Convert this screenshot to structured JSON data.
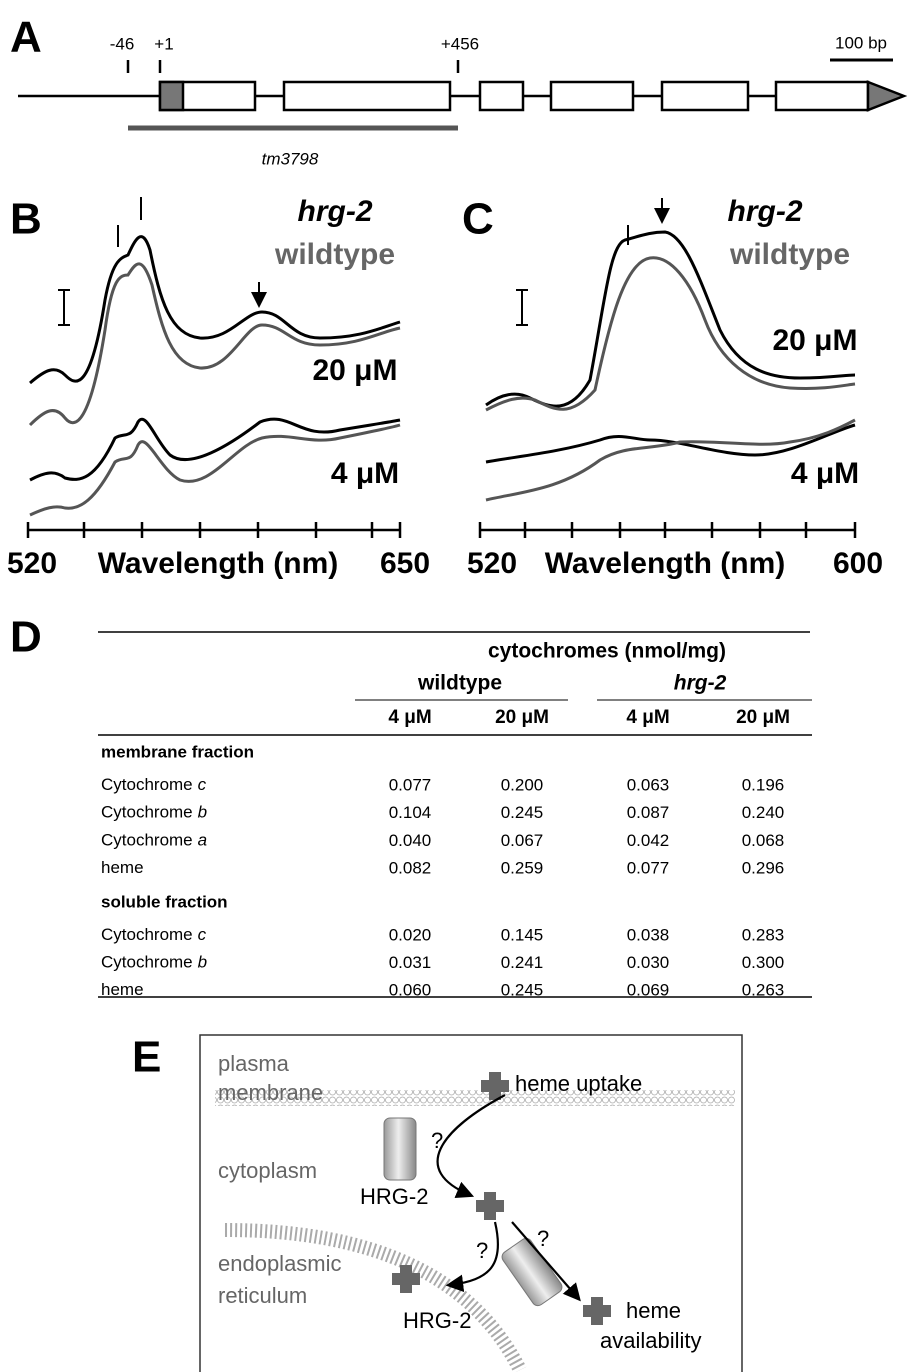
{
  "panel_a": {
    "label": "A",
    "positions": [
      "-46",
      "+1",
      "+456"
    ],
    "scale": "100 bp",
    "allele": "tm3798"
  },
  "panel_b": {
    "label": "B",
    "legend": [
      "hrg-2",
      "wildtype"
    ],
    "concentrations": [
      "20 μM",
      "4 μM"
    ],
    "x_axis": {
      "start": "520",
      "title": "Wavelength (nm)",
      "end": "650"
    }
  },
  "panel_c": {
    "label": "C",
    "legend": [
      "hrg-2",
      "wildtype"
    ],
    "concentrations": [
      "20 μM",
      "4 μM"
    ],
    "x_axis": {
      "start": "520",
      "title": "Wavelength (nm)",
      "end": "600"
    }
  },
  "panel_d": {
    "label": "D",
    "header": "cytochromes (nmol/mg)",
    "groups": [
      "wildtype",
      "hrg-2"
    ],
    "columns": [
      "4 μM",
      "20 μM",
      "4 μM",
      "20 μM"
    ],
    "sections": [
      {
        "title": "membrane fraction",
        "rows": [
          {
            "name": "Cytochrome",
            "subtype": "c",
            "values": [
              "0.077",
              "0.200",
              "0.063",
              "0.196"
            ]
          },
          {
            "name": "Cytochrome",
            "subtype": "b",
            "values": [
              "0.104",
              "0.245",
              "0.087",
              "0.240"
            ]
          },
          {
            "name": "Cytochrome",
            "subtype": "a",
            "values": [
              "0.040",
              "0.067",
              "0.042",
              "0.068"
            ]
          },
          {
            "name": "heme",
            "values": [
              "0.082",
              "0.259",
              "0.077",
              "0.296"
            ]
          }
        ]
      },
      {
        "title": "soluble fraction",
        "rows": [
          {
            "name": "Cytochrome",
            "subtype": "c",
            "values": [
              "0.020",
              "0.145",
              "0.038",
              "0.283"
            ]
          },
          {
            "name": "Cytochrome",
            "subtype": "b",
            "values": [
              "0.031",
              "0.241",
              "0.030",
              "0.300"
            ]
          },
          {
            "name": "heme",
            "values": [
              "0.060",
              "0.245",
              "0.069",
              "0.263"
            ]
          }
        ]
      }
    ]
  },
  "panel_e": {
    "label": "E",
    "plasma": "plasma",
    "membrane": "membrane",
    "uptake": "heme uptake",
    "cytoplasm": "cytoplasm",
    "protein_top": "HRG-2",
    "protein_bottom": "HRG-2",
    "questions": [
      "?",
      "?",
      "?"
    ],
    "er_1": "endoplasmic",
    "er_2": "reticulum",
    "availability_1": "heme",
    "availability_2": "availability"
  }
}
